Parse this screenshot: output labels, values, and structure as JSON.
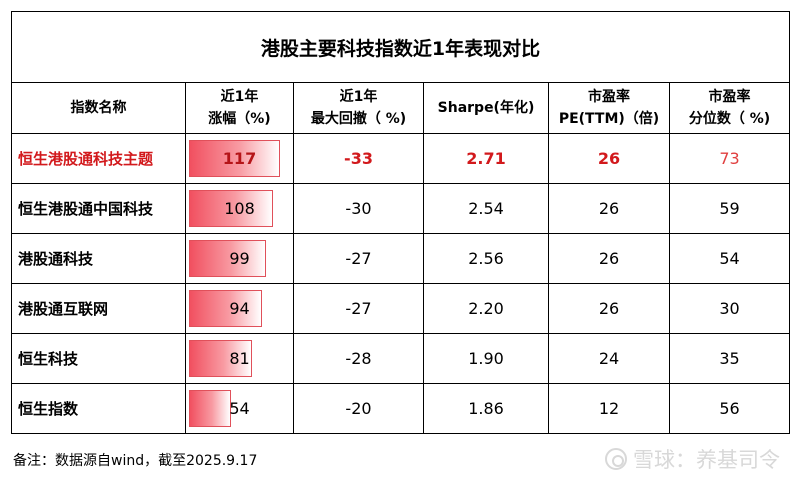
{
  "table": {
    "title": "港股主要科技指数近1年表现对比",
    "headers": [
      {
        "line1": "指数名称",
        "line2": ""
      },
      {
        "line1": "近1年",
        "line2": "涨幅（%)"
      },
      {
        "line1": "近1年",
        "line2": "最大回撤（ %)"
      },
      {
        "line1": "Sharpe(年化)",
        "line2": ""
      },
      {
        "line1": "市盈率",
        "line2": "PE(TTM)（倍)"
      },
      {
        "line1": "市盈率",
        "line2": "分位数（ %)"
      }
    ],
    "rows": [
      {
        "name": "恒生港股通科技主题",
        "gain": "117",
        "gain_value": 117,
        "drawdown": "-33",
        "sharpe": "2.71",
        "pe": "26",
        "pe_pct": "73"
      },
      {
        "name": "恒生港股通中国科技",
        "gain": "108",
        "gain_value": 108,
        "drawdown": "-30",
        "sharpe": "2.54",
        "pe": "26",
        "pe_pct": "59"
      },
      {
        "name": "港股通科技",
        "gain": "99",
        "gain_value": 99,
        "drawdown": "-27",
        "sharpe": "2.56",
        "pe": "26",
        "pe_pct": "54"
      },
      {
        "name": "港股通互联网",
        "gain": "94",
        "gain_value": 94,
        "drawdown": "-27",
        "sharpe": "2.20",
        "pe": "26",
        "pe_pct": "30"
      },
      {
        "name": "恒生科技",
        "gain": "81",
        "gain_value": 81,
        "drawdown": "-28",
        "sharpe": "1.90",
        "pe": "24",
        "pe_pct": "35"
      },
      {
        "name": "恒生指数",
        "gain": "54",
        "gain_value": 54,
        "drawdown": "-20",
        "sharpe": "1.86",
        "pe": "12",
        "pe_pct": "56"
      }
    ],
    "bar_max": 117
  },
  "note": "备注：数据源自wind，截至2025.9.17",
  "watermark": "雪球：养基司令",
  "colors": {
    "highlight": "#d2191c",
    "bar": "#f15060"
  }
}
